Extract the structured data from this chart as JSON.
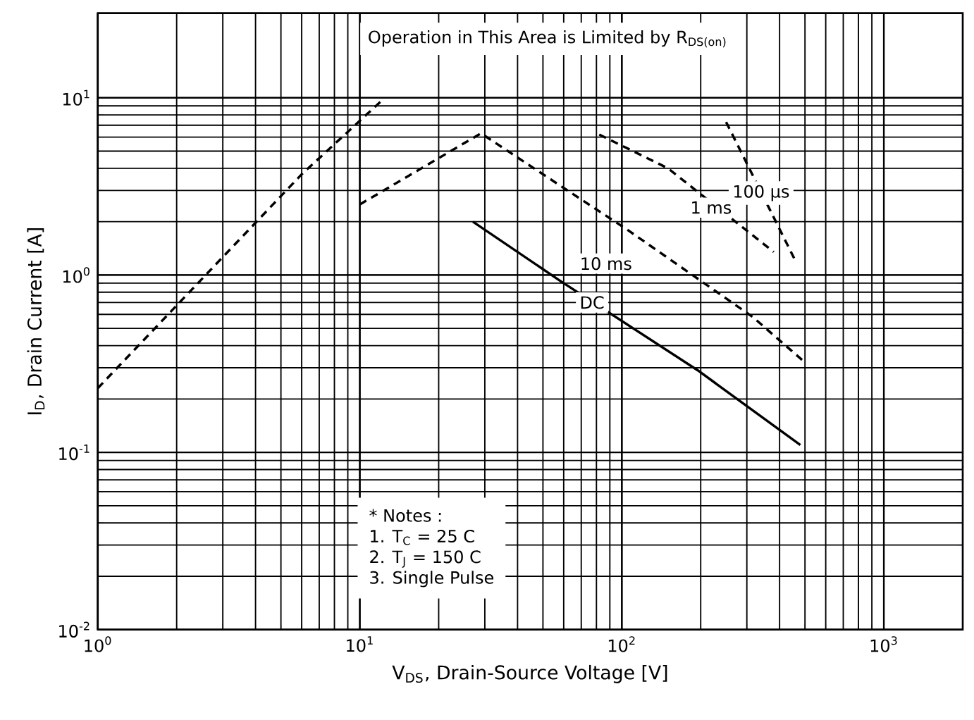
{
  "chart_data": {
    "type": "line",
    "log": "xy",
    "grid": true,
    "marker": "none",
    "xlabel": "V$_{DS}$, Drain-Source Voltage [V]",
    "ylabel": "I$_{D}$, Drain Current [A]",
    "xlim": [
      1,
      2000
    ],
    "ylim": [
      0.01,
      30
    ],
    "xticks": [
      {
        "value": 1,
        "label": "10$^{0}$"
      },
      {
        "value": 10,
        "label": "10$^{1}$"
      },
      {
        "value": 100,
        "label": "10$^{2}$"
      },
      {
        "value": 1000,
        "label": "10$^{3}$"
      }
    ],
    "yticks": [
      {
        "value": 0.01,
        "label": "10$^{-2}$"
      },
      {
        "value": 0.1,
        "label": "10$^{-1}$"
      },
      {
        "value": 1,
        "label": "10$^{0}$"
      },
      {
        "value": 10,
        "label": "10$^{1}$"
      }
    ],
    "series": [
      {
        "color": "#000000",
        "line_style": "dashed",
        "x": [
          1,
          6,
          12
        ],
        "values": [
          0.23,
          3.7,
          9.5
        ]
      },
      {
        "color": "#000000",
        "line_style": "dashed",
        "x": [
          10,
          29,
          60,
          105,
          316,
          490
        ],
        "values": [
          2.5,
          6.3,
          3.1,
          1.8,
          0.58,
          0.33
        ]
      },
      {
        "color": "#000000",
        "line_style": "dashed",
        "x": [
          82,
          150,
          380
        ],
        "values": [
          6.2,
          4.0,
          1.35
        ]
      },
      {
        "color": "#000000",
        "line_style": "dashed",
        "x": [
          250,
          460
        ],
        "values": [
          7.3,
          1.2
        ]
      },
      {
        "color": "#000000",
        "line_style": "solid",
        "x": [
          27,
          58,
          195,
          480
        ],
        "values": [
          2.0,
          0.93,
          0.29,
          0.11
        ]
      }
    ],
    "annotations": [
      "Operation in This Area is Limited by R$_{DS(on)}$",
      "* Notes :",
      "1. T$_{C}$ = 25 C",
      "2. T$_{J}$ = 150 C",
      "3. Single Pulse",
      {
        "text": "100 µs",
        "x": 340,
        "y": 2.9
      },
      {
        "text": "1 ms",
        "x": 219,
        "y": 2.4
      },
      {
        "text": "10 ms",
        "x": 87,
        "y": 1.16
      },
      {
        "text": "DC",
        "x": 77,
        "y": 0.7
      }
    ]
  }
}
